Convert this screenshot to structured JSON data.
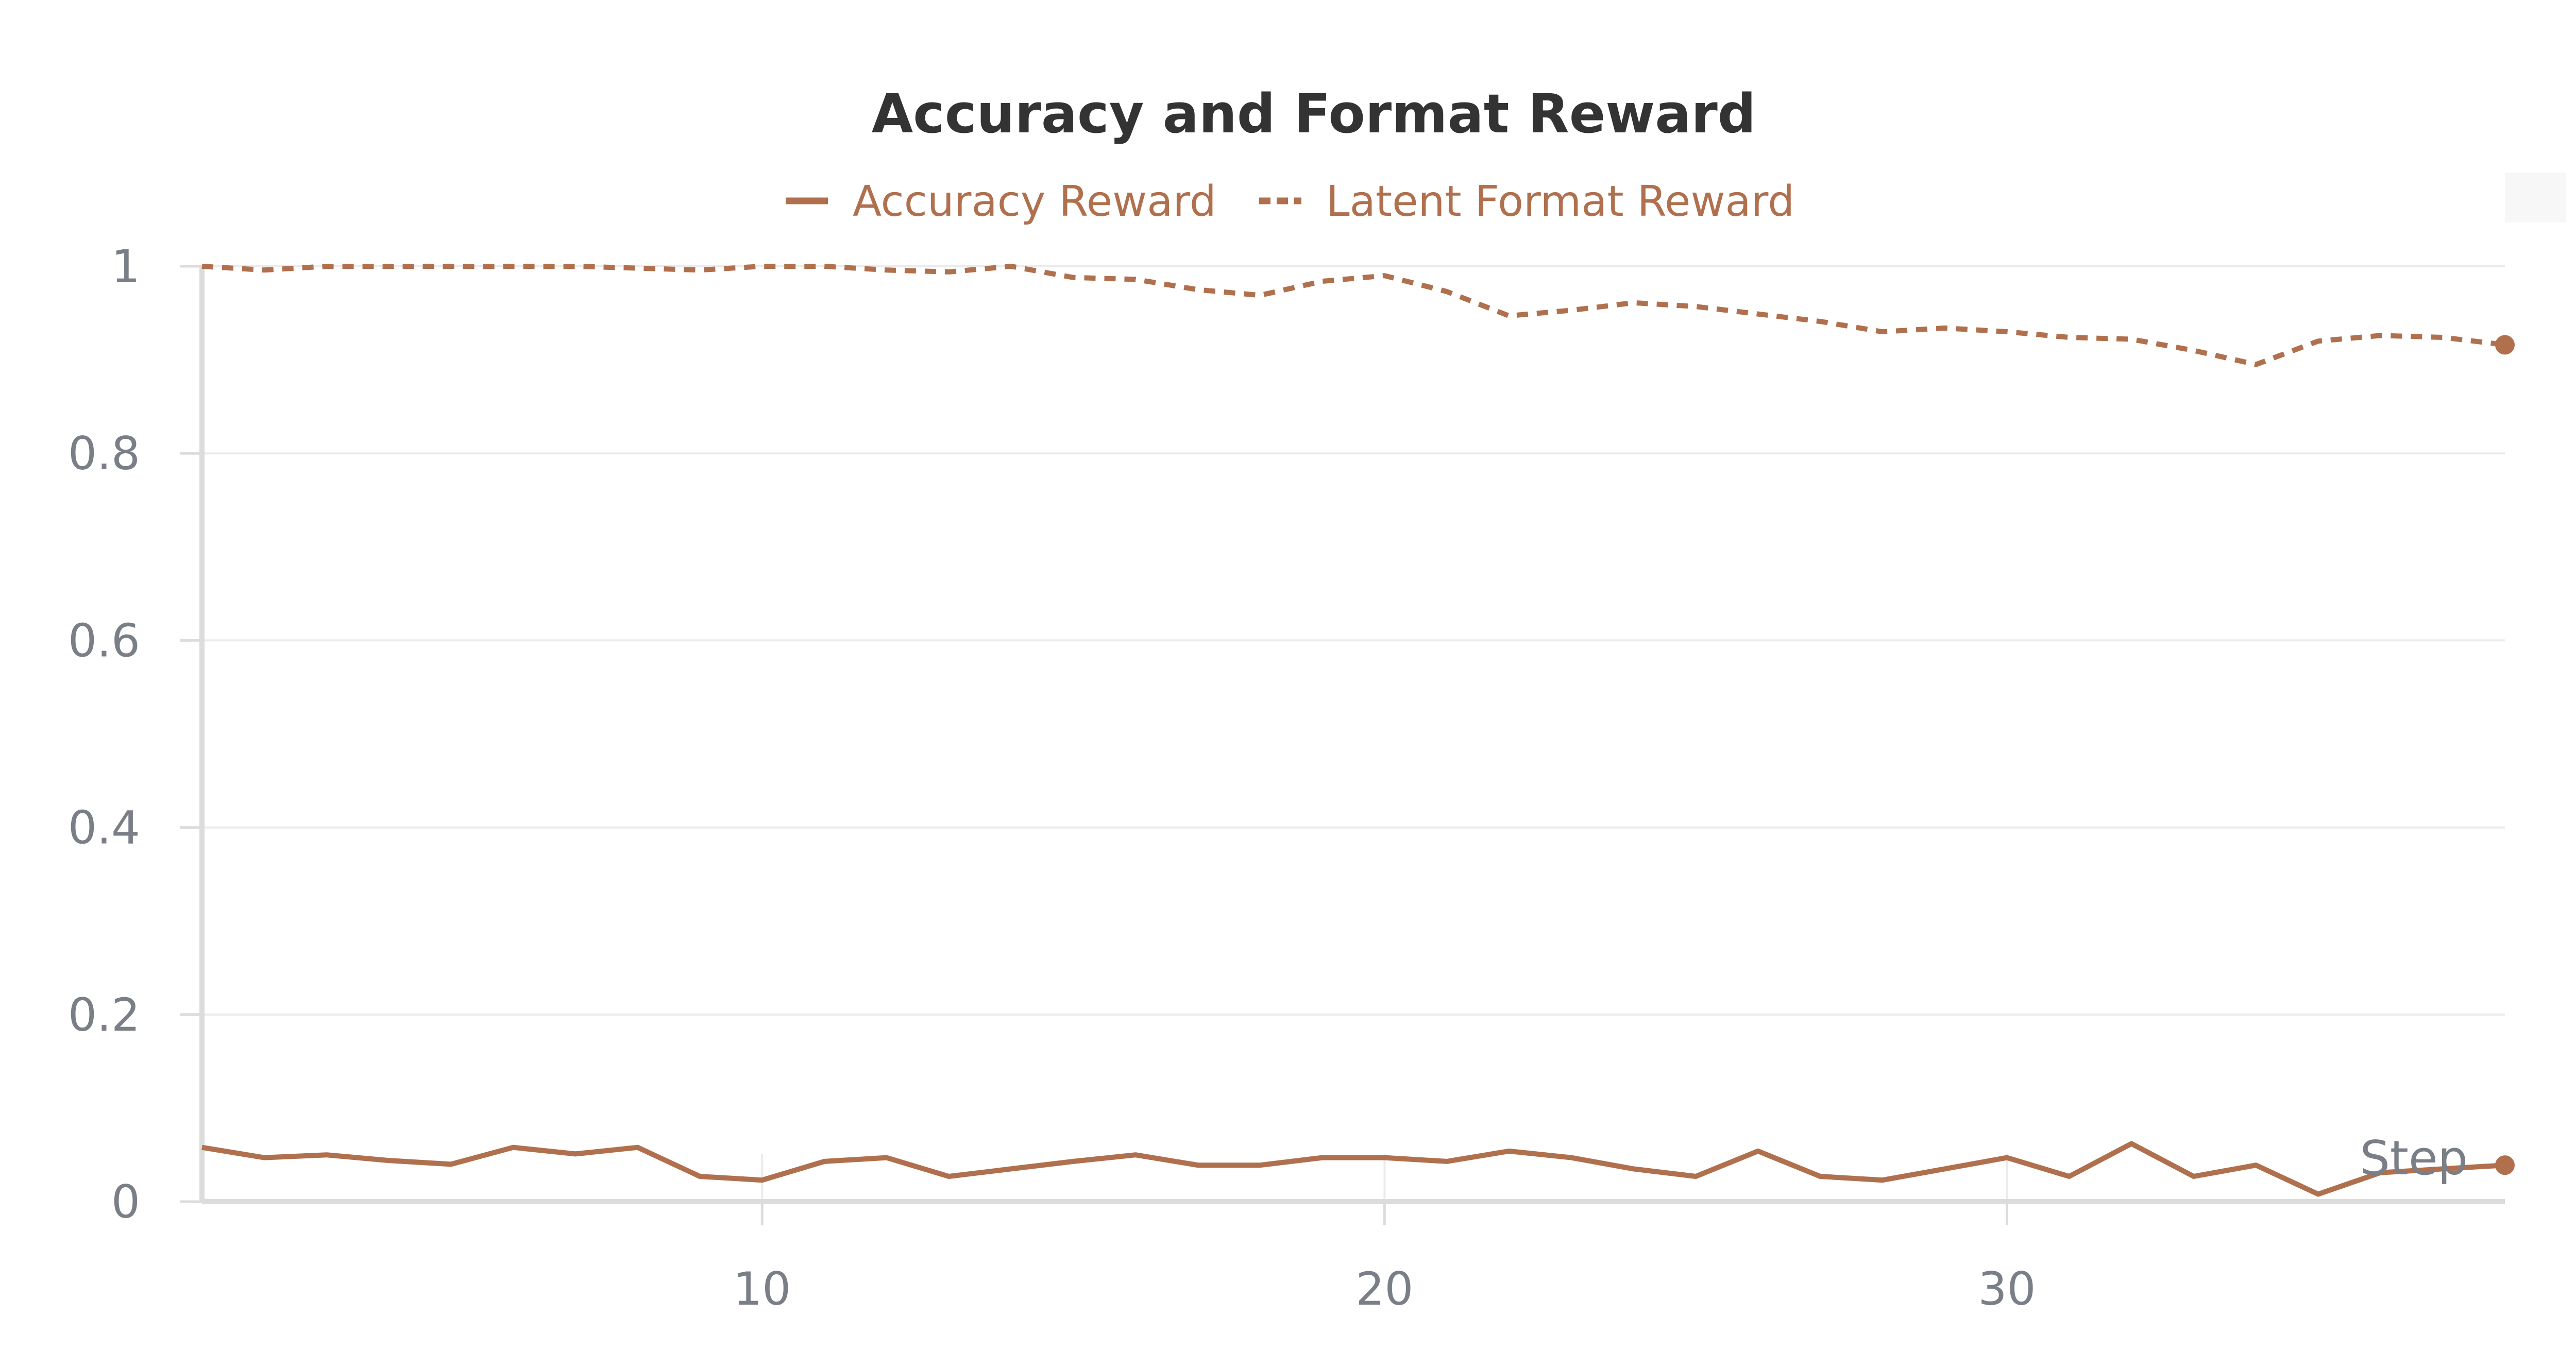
{
  "chart_data": {
    "type": "line",
    "title": "Accuracy and Format Reward",
    "xlabel": "Step",
    "ylabel": "",
    "xlim": [
      1,
      38
    ],
    "ylim": [
      0,
      1
    ],
    "x_ticks": [
      10,
      20,
      30
    ],
    "x_tick_labels": [
      "10",
      "20",
      "30"
    ],
    "y_ticks": [
      0,
      0.2,
      0.4,
      0.6,
      0.8,
      1
    ],
    "y_tick_labels": [
      "0",
      "0.2",
      "0.4",
      "0.6",
      "0.8",
      "1"
    ],
    "grid": true,
    "legend_position": "top-center",
    "x": [
      1,
      2,
      3,
      4,
      5,
      6,
      7,
      8,
      9,
      10,
      11,
      12,
      13,
      14,
      15,
      16,
      17,
      18,
      19,
      20,
      21,
      22,
      23,
      24,
      25,
      26,
      27,
      28,
      29,
      30,
      31,
      32,
      33,
      34,
      35,
      36,
      37,
      38
    ],
    "series": [
      {
        "name": "Accuracy Reward",
        "style": "solid",
        "color": "#b0704e",
        "values": [
          0.058,
          0.047,
          0.05,
          0.044,
          0.04,
          0.058,
          0.051,
          0.058,
          0.027,
          0.023,
          0.043,
          0.047,
          0.027,
          0.035,
          0.043,
          0.05,
          0.039,
          0.039,
          0.047,
          0.047,
          0.043,
          0.054,
          0.047,
          0.035,
          0.027,
          0.054,
          0.027,
          0.023,
          0.035,
          0.047,
          0.027,
          0.062,
          0.027,
          0.039,
          0.008,
          0.031,
          0.035,
          0.039
        ]
      },
      {
        "name": "Latent Format Reward",
        "style": "dashed",
        "color": "#b0704e",
        "values": [
          1.0,
          0.996,
          1.0,
          1.0,
          1.0,
          1.0,
          1.0,
          0.998,
          0.996,
          1.0,
          1.0,
          0.996,
          0.994,
          1.0,
          0.988,
          0.986,
          0.975,
          0.969,
          0.984,
          0.99,
          0.973,
          0.947,
          0.953,
          0.961,
          0.957,
          0.949,
          0.941,
          0.93,
          0.934,
          0.93,
          0.924,
          0.922,
          0.91,
          0.895,
          0.92,
          0.926,
          0.924,
          0.916
        ]
      }
    ]
  },
  "colors": {
    "series": "#b0704e",
    "title": "#333333",
    "tick_text": "#7a7f87",
    "axis": "#dcdcdc",
    "grid": "#ebebeb"
  }
}
